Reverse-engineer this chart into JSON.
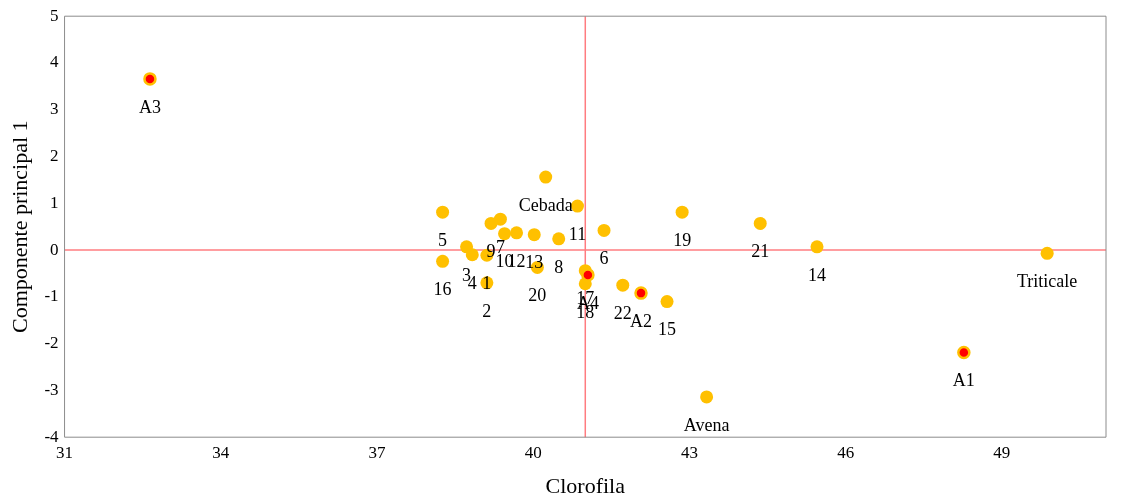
{
  "chart_data": {
    "type": "scatter",
    "xlabel": "Clorofila",
    "ylabel": "Componente principal 1",
    "xlim": [
      31,
      51
    ],
    "xticks": [
      31,
      34,
      37,
      40,
      43,
      46,
      49
    ],
    "ylim": [
      -4,
      5
    ],
    "yticks": [
      -4,
      -3,
      -2,
      -1,
      0,
      1,
      2,
      3,
      4,
      5
    ],
    "grid": false,
    "legend": false,
    "marker": "circle",
    "series": [
      {
        "color": "#ffc000",
        "x": [
          38.26,
          39.19,
          39.37,
          39.45,
          39.68,
          40.02,
          40.49,
          40.85,
          40.24,
          41.36,
          38.72,
          38.83,
          39.11,
          38.26,
          39.11,
          40.08,
          41.0,
          41.0,
          41.72,
          42.57,
          42.86,
          44.36,
          45.45,
          49.87,
          43.33
        ],
        "values": [
          0.81,
          0.57,
          0.66,
          0.35,
          0.37,
          0.33,
          0.24,
          0.94,
          1.56,
          0.42,
          0.07,
          -0.1,
          -0.11,
          -0.24,
          -0.7,
          -0.37,
          -0.44,
          -0.72,
          -0.75,
          -1.1,
          0.81,
          0.57,
          0.07,
          -0.07,
          -3.14
        ]
      },
      {
        "color": "#ff0000",
        "x": [
          32.64,
          48.27,
          42.07,
          41.05
        ],
        "values": [
          3.66,
          -2.19,
          -0.92,
          -0.53
        ]
      }
    ],
    "ref_lines": [
      {
        "axis": "x",
        "value": 41,
        "color": "#ff7c80"
      },
      {
        "axis": "y",
        "value": 0,
        "color": "#ff7c80"
      }
    ],
    "annotations": [
      {
        "text": "5",
        "x": 38.26,
        "y": 0.81
      },
      {
        "text": "9",
        "x": 39.19,
        "y": 0.57
      },
      {
        "text": "7",
        "x": 39.37,
        "y": 0.66
      },
      {
        "text": "10",
        "x": 39.45,
        "y": 0.35
      },
      {
        "text": "12",
        "x": 39.68,
        "y": 0.37
      },
      {
        "text": "13",
        "x": 40.02,
        "y": 0.33
      },
      {
        "text": "8",
        "x": 40.49,
        "y": 0.24
      },
      {
        "text": "11",
        "x": 40.85,
        "y": 0.94
      },
      {
        "text": "Cebada",
        "x": 40.24,
        "y": 1.56
      },
      {
        "text": "6",
        "x": 41.36,
        "y": 0.42
      },
      {
        "text": "3",
        "x": 38.72,
        "y": 0.07
      },
      {
        "text": "4",
        "x": 38.83,
        "y": -0.1
      },
      {
        "text": "1",
        "x": 39.11,
        "y": -0.11
      },
      {
        "text": "16",
        "x": 38.26,
        "y": -0.24
      },
      {
        "text": "2",
        "x": 39.11,
        "y": -0.7
      },
      {
        "text": "20",
        "x": 40.08,
        "y": -0.37
      },
      {
        "text": "17",
        "x": 41.0,
        "y": -0.44
      },
      {
        "text": "18",
        "x": 41.0,
        "y": -0.72
      },
      {
        "text": "22",
        "x": 41.72,
        "y": -0.75
      },
      {
        "text": "15",
        "x": 42.57,
        "y": -1.1
      },
      {
        "text": "19",
        "x": 42.86,
        "y": 0.81
      },
      {
        "text": "21",
        "x": 44.36,
        "y": 0.57
      },
      {
        "text": "14",
        "x": 45.45,
        "y": 0.07
      },
      {
        "text": "Triticale",
        "x": 49.87,
        "y": -0.07
      },
      {
        "text": "Avena",
        "x": 43.33,
        "y": -3.14
      },
      {
        "text": "A3",
        "x": 32.64,
        "y": 3.66
      },
      {
        "text": "A1",
        "x": 48.27,
        "y": -2.19
      },
      {
        "text": "A2",
        "x": 42.07,
        "y": -0.92
      },
      {
        "text": "A4",
        "x": 41.05,
        "y": -0.53
      }
    ]
  }
}
